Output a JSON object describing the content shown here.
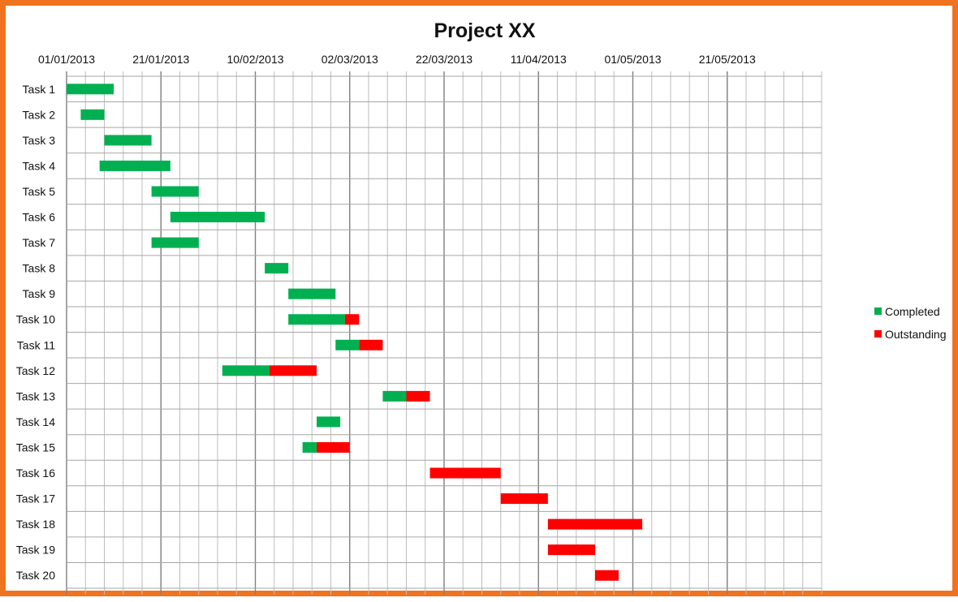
{
  "chart_data": {
    "type": "gantt",
    "title": "Project XX",
    "x_axis": {
      "type": "date",
      "start": "2013-01-01",
      "end": "2013-06-10",
      "tick_labels": [
        "01/01/2013",
        "21/01/2013",
        "10/02/2013",
        "02/03/2013",
        "22/03/2013",
        "11/04/2013",
        "01/05/2013",
        "21/05/2013"
      ],
      "tick_dates": [
        "2013-01-01",
        "2013-01-21",
        "2013-02-10",
        "2013-03-02",
        "2013-03-22",
        "2013-04-11",
        "2013-05-01",
        "2013-05-21"
      ],
      "minor_grid_days": 4,
      "position": "top"
    },
    "grid": true,
    "legend": {
      "placement": "right",
      "entries": [
        {
          "label": "Completed",
          "color": "#00b050"
        },
        {
          "label": "Outstanding",
          "color": "#ff0000"
        }
      ]
    },
    "series": [
      {
        "name": "Completed",
        "color": "#00b050"
      },
      {
        "name": "Outstanding",
        "color": "#ff0000"
      }
    ],
    "tasks": [
      {
        "name": "Task 1",
        "start": "2013-01-01",
        "completed_days": 10,
        "outstanding_days": 0
      },
      {
        "name": "Task 2",
        "start": "2013-01-04",
        "completed_days": 5,
        "outstanding_days": 0
      },
      {
        "name": "Task 3",
        "start": "2013-01-09",
        "completed_days": 10,
        "outstanding_days": 0
      },
      {
        "name": "Task 4",
        "start": "2013-01-08",
        "completed_days": 15,
        "outstanding_days": 0
      },
      {
        "name": "Task 5",
        "start": "2013-01-19",
        "completed_days": 10,
        "outstanding_days": 0
      },
      {
        "name": "Task 6",
        "start": "2013-01-23",
        "completed_days": 20,
        "outstanding_days": 0
      },
      {
        "name": "Task 7",
        "start": "2013-01-19",
        "completed_days": 10,
        "outstanding_days": 0
      },
      {
        "name": "Task 8",
        "start": "2013-02-12",
        "completed_days": 5,
        "outstanding_days": 0
      },
      {
        "name": "Task 9",
        "start": "2013-02-17",
        "completed_days": 10,
        "outstanding_days": 0
      },
      {
        "name": "Task 10",
        "start": "2013-02-17",
        "completed_days": 12,
        "outstanding_days": 3
      },
      {
        "name": "Task 11",
        "start": "2013-02-27",
        "completed_days": 5,
        "outstanding_days": 5
      },
      {
        "name": "Task 12",
        "start": "2013-02-03",
        "completed_days": 10,
        "outstanding_days": 10
      },
      {
        "name": "Task 13",
        "start": "2013-03-09",
        "completed_days": 5,
        "outstanding_days": 5
      },
      {
        "name": "Task 14",
        "start": "2013-02-23",
        "completed_days": 5,
        "outstanding_days": 0
      },
      {
        "name": "Task 15",
        "start": "2013-02-20",
        "completed_days": 3,
        "outstanding_days": 7
      },
      {
        "name": "Task 16",
        "start": "2013-03-19",
        "completed_days": 0,
        "outstanding_days": 15
      },
      {
        "name": "Task 17",
        "start": "2013-04-03",
        "completed_days": 0,
        "outstanding_days": 10
      },
      {
        "name": "Task 18",
        "start": "2013-04-13",
        "completed_days": 0,
        "outstanding_days": 20
      },
      {
        "name": "Task 19",
        "start": "2013-04-13",
        "completed_days": 0,
        "outstanding_days": 10
      },
      {
        "name": "Task 20",
        "start": "2013-04-23",
        "completed_days": 0,
        "outstanding_days": 5
      }
    ]
  }
}
